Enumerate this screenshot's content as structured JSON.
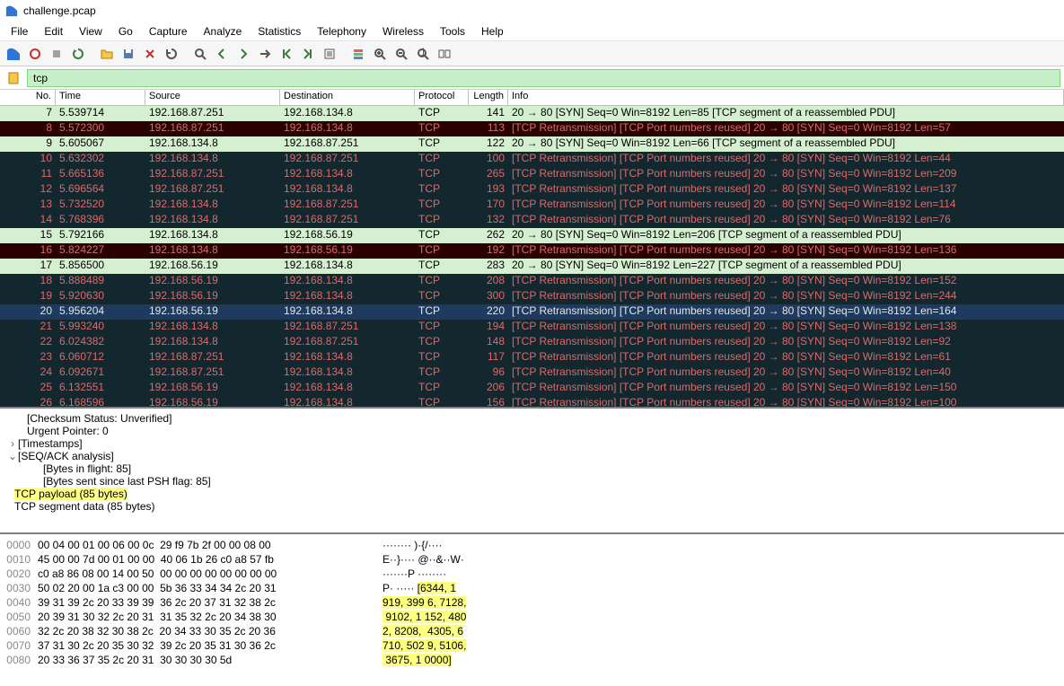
{
  "window": {
    "title": "challenge.pcap"
  },
  "menu": [
    "File",
    "Edit",
    "View",
    "Go",
    "Capture",
    "Analyze",
    "Statistics",
    "Telephony",
    "Wireless",
    "Tools",
    "Help"
  ],
  "filter": {
    "bookmark_icon": "bookmark",
    "text": "tcp",
    "bg": "#c8f0c8",
    "border": "#7fd87f"
  },
  "columns": [
    {
      "key": "no",
      "label": "No."
    },
    {
      "key": "time",
      "label": "Time"
    },
    {
      "key": "src",
      "label": "Source"
    },
    {
      "key": "dst",
      "label": "Destination"
    },
    {
      "key": "proto",
      "label": "Protocol"
    },
    {
      "key": "len",
      "label": "Length"
    },
    {
      "key": "info",
      "label": "Info"
    }
  ],
  "row_colors": {
    "syn_green": {
      "bg": "#d5f0d0",
      "fg": "#000000"
    },
    "retrans_dark": {
      "bg": "#12272e",
      "fg": "#d96b6b"
    },
    "retrans_red": {
      "bg": "#2b0000",
      "fg": "#d96b6b"
    },
    "selected": {
      "bg": "#1e3a5f",
      "fg": "#e6e6e6"
    }
  },
  "packets": [
    {
      "no": 7,
      "time": "5.539714",
      "src": "192.168.87.251",
      "dst": "192.168.134.8",
      "proto": "TCP",
      "len": 141,
      "info": "20 → 80 [SYN] Seq=0 Win=8192 Len=85 [TCP segment of a reassembled PDU]",
      "style": "syn_green"
    },
    {
      "no": 8,
      "time": "5.572300",
      "src": "192.168.87.251",
      "dst": "192.168.134.8",
      "proto": "TCP",
      "len": 113,
      "info": "[TCP Retransmission] [TCP Port numbers reused] 20 → 80 [SYN] Seq=0 Win=8192 Len=57",
      "style": "retrans_red"
    },
    {
      "no": 9,
      "time": "5.605067",
      "src": "192.168.134.8",
      "dst": "192.168.87.251",
      "proto": "TCP",
      "len": 122,
      "info": "20 → 80 [SYN] Seq=0 Win=8192 Len=66 [TCP segment of a reassembled PDU]",
      "style": "syn_green"
    },
    {
      "no": 10,
      "time": "5.632302",
      "src": "192.168.134.8",
      "dst": "192.168.87.251",
      "proto": "TCP",
      "len": 100,
      "info": "[TCP Retransmission] [TCP Port numbers reused] 20 → 80 [SYN] Seq=0 Win=8192 Len=44",
      "style": "retrans_dark"
    },
    {
      "no": 11,
      "time": "5.665136",
      "src": "192.168.87.251",
      "dst": "192.168.134.8",
      "proto": "TCP",
      "len": 265,
      "info": "[TCP Retransmission] [TCP Port numbers reused] 20 → 80 [SYN] Seq=0 Win=8192 Len=209",
      "style": "retrans_dark"
    },
    {
      "no": 12,
      "time": "5.696564",
      "src": "192.168.87.251",
      "dst": "192.168.134.8",
      "proto": "TCP",
      "len": 193,
      "info": "[TCP Retransmission] [TCP Port numbers reused] 20 → 80 [SYN] Seq=0 Win=8192 Len=137",
      "style": "retrans_dark"
    },
    {
      "no": 13,
      "time": "5.732520",
      "src": "192.168.134.8",
      "dst": "192.168.87.251",
      "proto": "TCP",
      "len": 170,
      "info": "[TCP Retransmission] [TCP Port numbers reused] 20 → 80 [SYN] Seq=0 Win=8192 Len=114",
      "style": "retrans_dark"
    },
    {
      "no": 14,
      "time": "5.768396",
      "src": "192.168.134.8",
      "dst": "192.168.87.251",
      "proto": "TCP",
      "len": 132,
      "info": "[TCP Retransmission] [TCP Port numbers reused] 20 → 80 [SYN] Seq=0 Win=8192 Len=76",
      "style": "retrans_dark"
    },
    {
      "no": 15,
      "time": "5.792166",
      "src": "192.168.134.8",
      "dst": "192.168.56.19",
      "proto": "TCP",
      "len": 262,
      "info": "20 → 80 [SYN] Seq=0 Win=8192 Len=206 [TCP segment of a reassembled PDU]",
      "style": "syn_green"
    },
    {
      "no": 16,
      "time": "5.824227",
      "src": "192.168.134.8",
      "dst": "192.168.56.19",
      "proto": "TCP",
      "len": 192,
      "info": "[TCP Retransmission] [TCP Port numbers reused] 20 → 80 [SYN] Seq=0 Win=8192 Len=136",
      "style": "retrans_red"
    },
    {
      "no": 17,
      "time": "5.856500",
      "src": "192.168.56.19",
      "dst": "192.168.134.8",
      "proto": "TCP",
      "len": 283,
      "info": "20 → 80 [SYN] Seq=0 Win=8192 Len=227 [TCP segment of a reassembled PDU]",
      "style": "syn_green"
    },
    {
      "no": 18,
      "time": "5.888489",
      "src": "192.168.56.19",
      "dst": "192.168.134.8",
      "proto": "TCP",
      "len": 208,
      "info": "[TCP Retransmission] [TCP Port numbers reused] 20 → 80 [SYN] Seq=0 Win=8192 Len=152",
      "style": "retrans_dark"
    },
    {
      "no": 19,
      "time": "5.920630",
      "src": "192.168.56.19",
      "dst": "192.168.134.8",
      "proto": "TCP",
      "len": 300,
      "info": "[TCP Retransmission] [TCP Port numbers reused] 20 → 80 [SYN] Seq=0 Win=8192 Len=244",
      "style": "retrans_dark"
    },
    {
      "no": 20,
      "time": "5.956204",
      "src": "192.168.56.19",
      "dst": "192.168.134.8",
      "proto": "TCP",
      "len": 220,
      "info": "[TCP Retransmission] [TCP Port numbers reused] 20 → 80 [SYN] Seq=0 Win=8192 Len=164",
      "style": "selected"
    },
    {
      "no": 21,
      "time": "5.993240",
      "src": "192.168.134.8",
      "dst": "192.168.87.251",
      "proto": "TCP",
      "len": 194,
      "info": "[TCP Retransmission] [TCP Port numbers reused] 20 → 80 [SYN] Seq=0 Win=8192 Len=138",
      "style": "retrans_dark"
    },
    {
      "no": 22,
      "time": "6.024382",
      "src": "192.168.134.8",
      "dst": "192.168.87.251",
      "proto": "TCP",
      "len": 148,
      "info": "[TCP Retransmission] [TCP Port numbers reused] 20 → 80 [SYN] Seq=0 Win=8192 Len=92",
      "style": "retrans_dark"
    },
    {
      "no": 23,
      "time": "6.060712",
      "src": "192.168.87.251",
      "dst": "192.168.134.8",
      "proto": "TCP",
      "len": 117,
      "info": "[TCP Retransmission] [TCP Port numbers reused] 20 → 80 [SYN] Seq=0 Win=8192 Len=61",
      "style": "retrans_dark"
    },
    {
      "no": 24,
      "time": "6.092671",
      "src": "192.168.87.251",
      "dst": "192.168.134.8",
      "proto": "TCP",
      "len": 96,
      "info": "[TCP Retransmission] [TCP Port numbers reused] 20 → 80 [SYN] Seq=0 Win=8192 Len=40",
      "style": "retrans_dark"
    },
    {
      "no": 25,
      "time": "6.132551",
      "src": "192.168.56.19",
      "dst": "192.168.134.8",
      "proto": "TCP",
      "len": 206,
      "info": "[TCP Retransmission] [TCP Port numbers reused] 20 → 80 [SYN] Seq=0 Win=8192 Len=150",
      "style": "retrans_dark"
    },
    {
      "no": 26,
      "time": "6.168596",
      "src": "192.168.56.19",
      "dst": "192.168.134.8",
      "proto": "TCP",
      "len": 156,
      "info": "[TCP Retransmission] [TCP Port numbers reused] 20 → 80 [SYN] Seq=0 Win=8192 Len=100",
      "style": "retrans_dark"
    }
  ],
  "details": {
    "checksum": "[Checksum Status: Unverified]",
    "urgent": "Urgent Pointer: 0",
    "timestamps": "[Timestamps]",
    "seqack": "[SEQ/ACK analysis]",
    "bytes_flight": "[Bytes in flight: 85]",
    "bytes_psh": "[Bytes sent since last PSH flag: 85]",
    "payload": "TCP payload (85 bytes)",
    "segment": "TCP segment data (85 bytes)"
  },
  "hex": [
    {
      "off": "0000",
      "b": "00 04 00 01 00 06 00 0c  29 f9 7b 2f 00 00 08 00",
      "a": "········ )·{/····",
      "hl": ""
    },
    {
      "off": "0010",
      "b": "45 00 00 7d 00 01 00 00  40 06 1b 26 c0 a8 57 fb",
      "a": "E··}···· @··&··W·",
      "hl": ""
    },
    {
      "off": "0020",
      "b": "c0 a8 86 08 00 14 00 50  00 00 00 00 00 00 00 00",
      "a": "·······P ········",
      "hl": ""
    },
    {
      "off": "0030",
      "b": "50 02 20 00 1a c3 00 00  5b 36 33 34 34 2c 20 31",
      "a": "P· ····· ",
      "hl": "[6344, 1"
    },
    {
      "off": "0040",
      "b": "39 31 39 2c 20 33 39 39  36 2c 20 37 31 32 38 2c",
      "a": "",
      "hl": "919, 399 6, 7128,"
    },
    {
      "off": "0050",
      "b": "20 39 31 30 32 2c 20 31  31 35 32 2c 20 34 38 30",
      "a": "",
      "hl": " 9102, 1 152, 480"
    },
    {
      "off": "0060",
      "b": "32 2c 20 38 32 30 38 2c  20 34 33 30 35 2c 20 36",
      "a": "",
      "hl": "2, 8208,  4305, 6"
    },
    {
      "off": "0070",
      "b": "37 31 30 2c 20 35 30 32  39 2c 20 35 31 30 36 2c",
      "a": "",
      "hl": "710, 502 9, 5106,"
    },
    {
      "off": "0080",
      "b": "20 33 36 37 35 2c 20 31  30 30 30 30 5d",
      "a": "",
      "hl": " 3675, 1 0000]"
    }
  ],
  "toolbar_icons": [
    "fin",
    "circle",
    "stop",
    "restart",
    "folder",
    "save",
    "close",
    "reload",
    "search",
    "back",
    "fwd",
    "jump",
    "first",
    "last",
    "autoscroll",
    "colorize",
    "zoomin",
    "zoomout",
    "zoom1",
    "resize"
  ]
}
